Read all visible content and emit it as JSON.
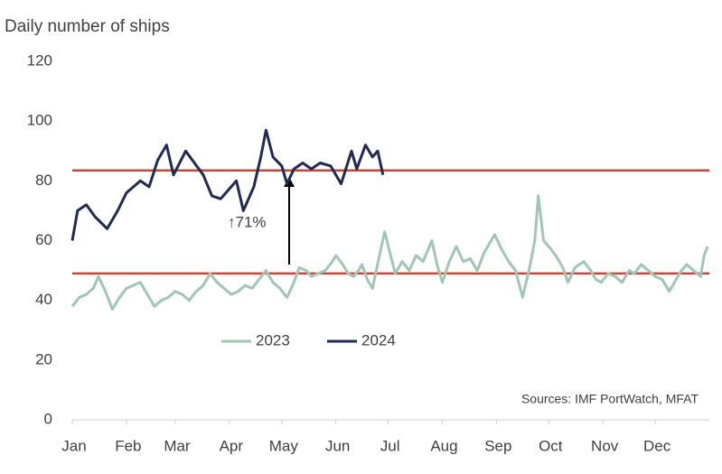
{
  "chart_data": {
    "type": "line",
    "title": "Daily number of ships",
    "source": "Sources: IMF PortWatch, MFAT",
    "annotation": "↑71%",
    "ylim": [
      0,
      120
    ],
    "yticks": [
      0,
      20,
      40,
      60,
      80,
      100,
      120
    ],
    "xlim": [
      0,
      365
    ],
    "xticks": [
      {
        "value": 0,
        "label": "Jan"
      },
      {
        "value": 31,
        "label": "Feb"
      },
      {
        "value": 59,
        "label": "Mar"
      },
      {
        "value": 90,
        "label": "Apr"
      },
      {
        "value": 120,
        "label": "May"
      },
      {
        "value": 151,
        "label": "Jun"
      },
      {
        "value": 181,
        "label": "Jul"
      },
      {
        "value": 212,
        "label": "Aug"
      },
      {
        "value": 243,
        "label": "Sep"
      },
      {
        "value": 273,
        "label": "Oct"
      },
      {
        "value": 304,
        "label": "Nov"
      },
      {
        "value": 334,
        "label": "Dec"
      }
    ],
    "reference_lines": {
      "color": "#d9412b",
      "values": [
        49,
        83.5
      ]
    },
    "series": [
      {
        "name": "2023",
        "color": "#9fc7b6",
        "x": [
          0,
          4,
          8,
          12,
          15,
          19,
          23,
          27,
          31,
          35,
          39,
          43,
          47,
          51,
          55,
          59,
          63,
          67,
          71,
          75,
          79,
          83,
          87,
          91,
          95,
          99,
          103,
          107,
          111,
          115,
          119,
          123,
          127,
          130,
          134,
          137,
          141,
          145,
          149,
          151,
          155,
          158,
          161,
          164,
          166,
          169,
          172,
          176,
          179,
          182,
          185,
          189,
          193,
          197,
          201,
          206,
          209,
          212,
          216,
          220,
          224,
          228,
          232,
          236,
          242,
          246,
          250,
          254,
          258,
          262,
          265,
          267,
          270,
          273,
          277,
          281,
          284,
          288,
          293,
          297,
          300,
          303,
          307,
          311,
          315,
          319,
          322,
          326,
          330,
          334,
          338,
          342,
          346,
          349,
          352,
          356,
          360,
          362,
          364
        ],
        "values": [
          38,
          41,
          42,
          44,
          48,
          43,
          37,
          41,
          44,
          45,
          46,
          42,
          38,
          40,
          41,
          43,
          42,
          40,
          43,
          45,
          49,
          46,
          44,
          42,
          43,
          45,
          44,
          47,
          50,
          46,
          44,
          41,
          46,
          51,
          50,
          48,
          49,
          50,
          53,
          55,
          52,
          49,
          48,
          50,
          52,
          47,
          44,
          55,
          63,
          56,
          49,
          53,
          50,
          55,
          53,
          60,
          52,
          46,
          53,
          58,
          53,
          54,
          50,
          56,
          62,
          57,
          53,
          50,
          41,
          51,
          60,
          75,
          60,
          58,
          55,
          51,
          46,
          51,
          53,
          50,
          47,
          46,
          49,
          48,
          46,
          50,
          49,
          52,
          50,
          48,
          47,
          43,
          47,
          50,
          52,
          50,
          48,
          55,
          58
        ]
      },
      {
        "name": "2024",
        "color": "#1f2a56",
        "x": [
          0,
          3,
          8,
          13,
          20,
          26,
          31,
          39,
          44,
          49,
          54,
          58,
          65,
          70,
          75,
          80,
          85,
          91,
          94,
          98,
          104,
          108,
          111,
          115,
          120,
          123,
          127,
          132,
          137,
          142,
          148,
          154,
          160,
          163,
          168,
          172,
          175,
          178
        ],
        "values": [
          60,
          70,
          72,
          68,
          64,
          70,
          76,
          80,
          78,
          87,
          92,
          82,
          90,
          86,
          82,
          75,
          74,
          78,
          80,
          70,
          78,
          88,
          97,
          88,
          85,
          79,
          84,
          86,
          84,
          86,
          85,
          79,
          90,
          84,
          92,
          88,
          90,
          82
        ]
      }
    ]
  }
}
